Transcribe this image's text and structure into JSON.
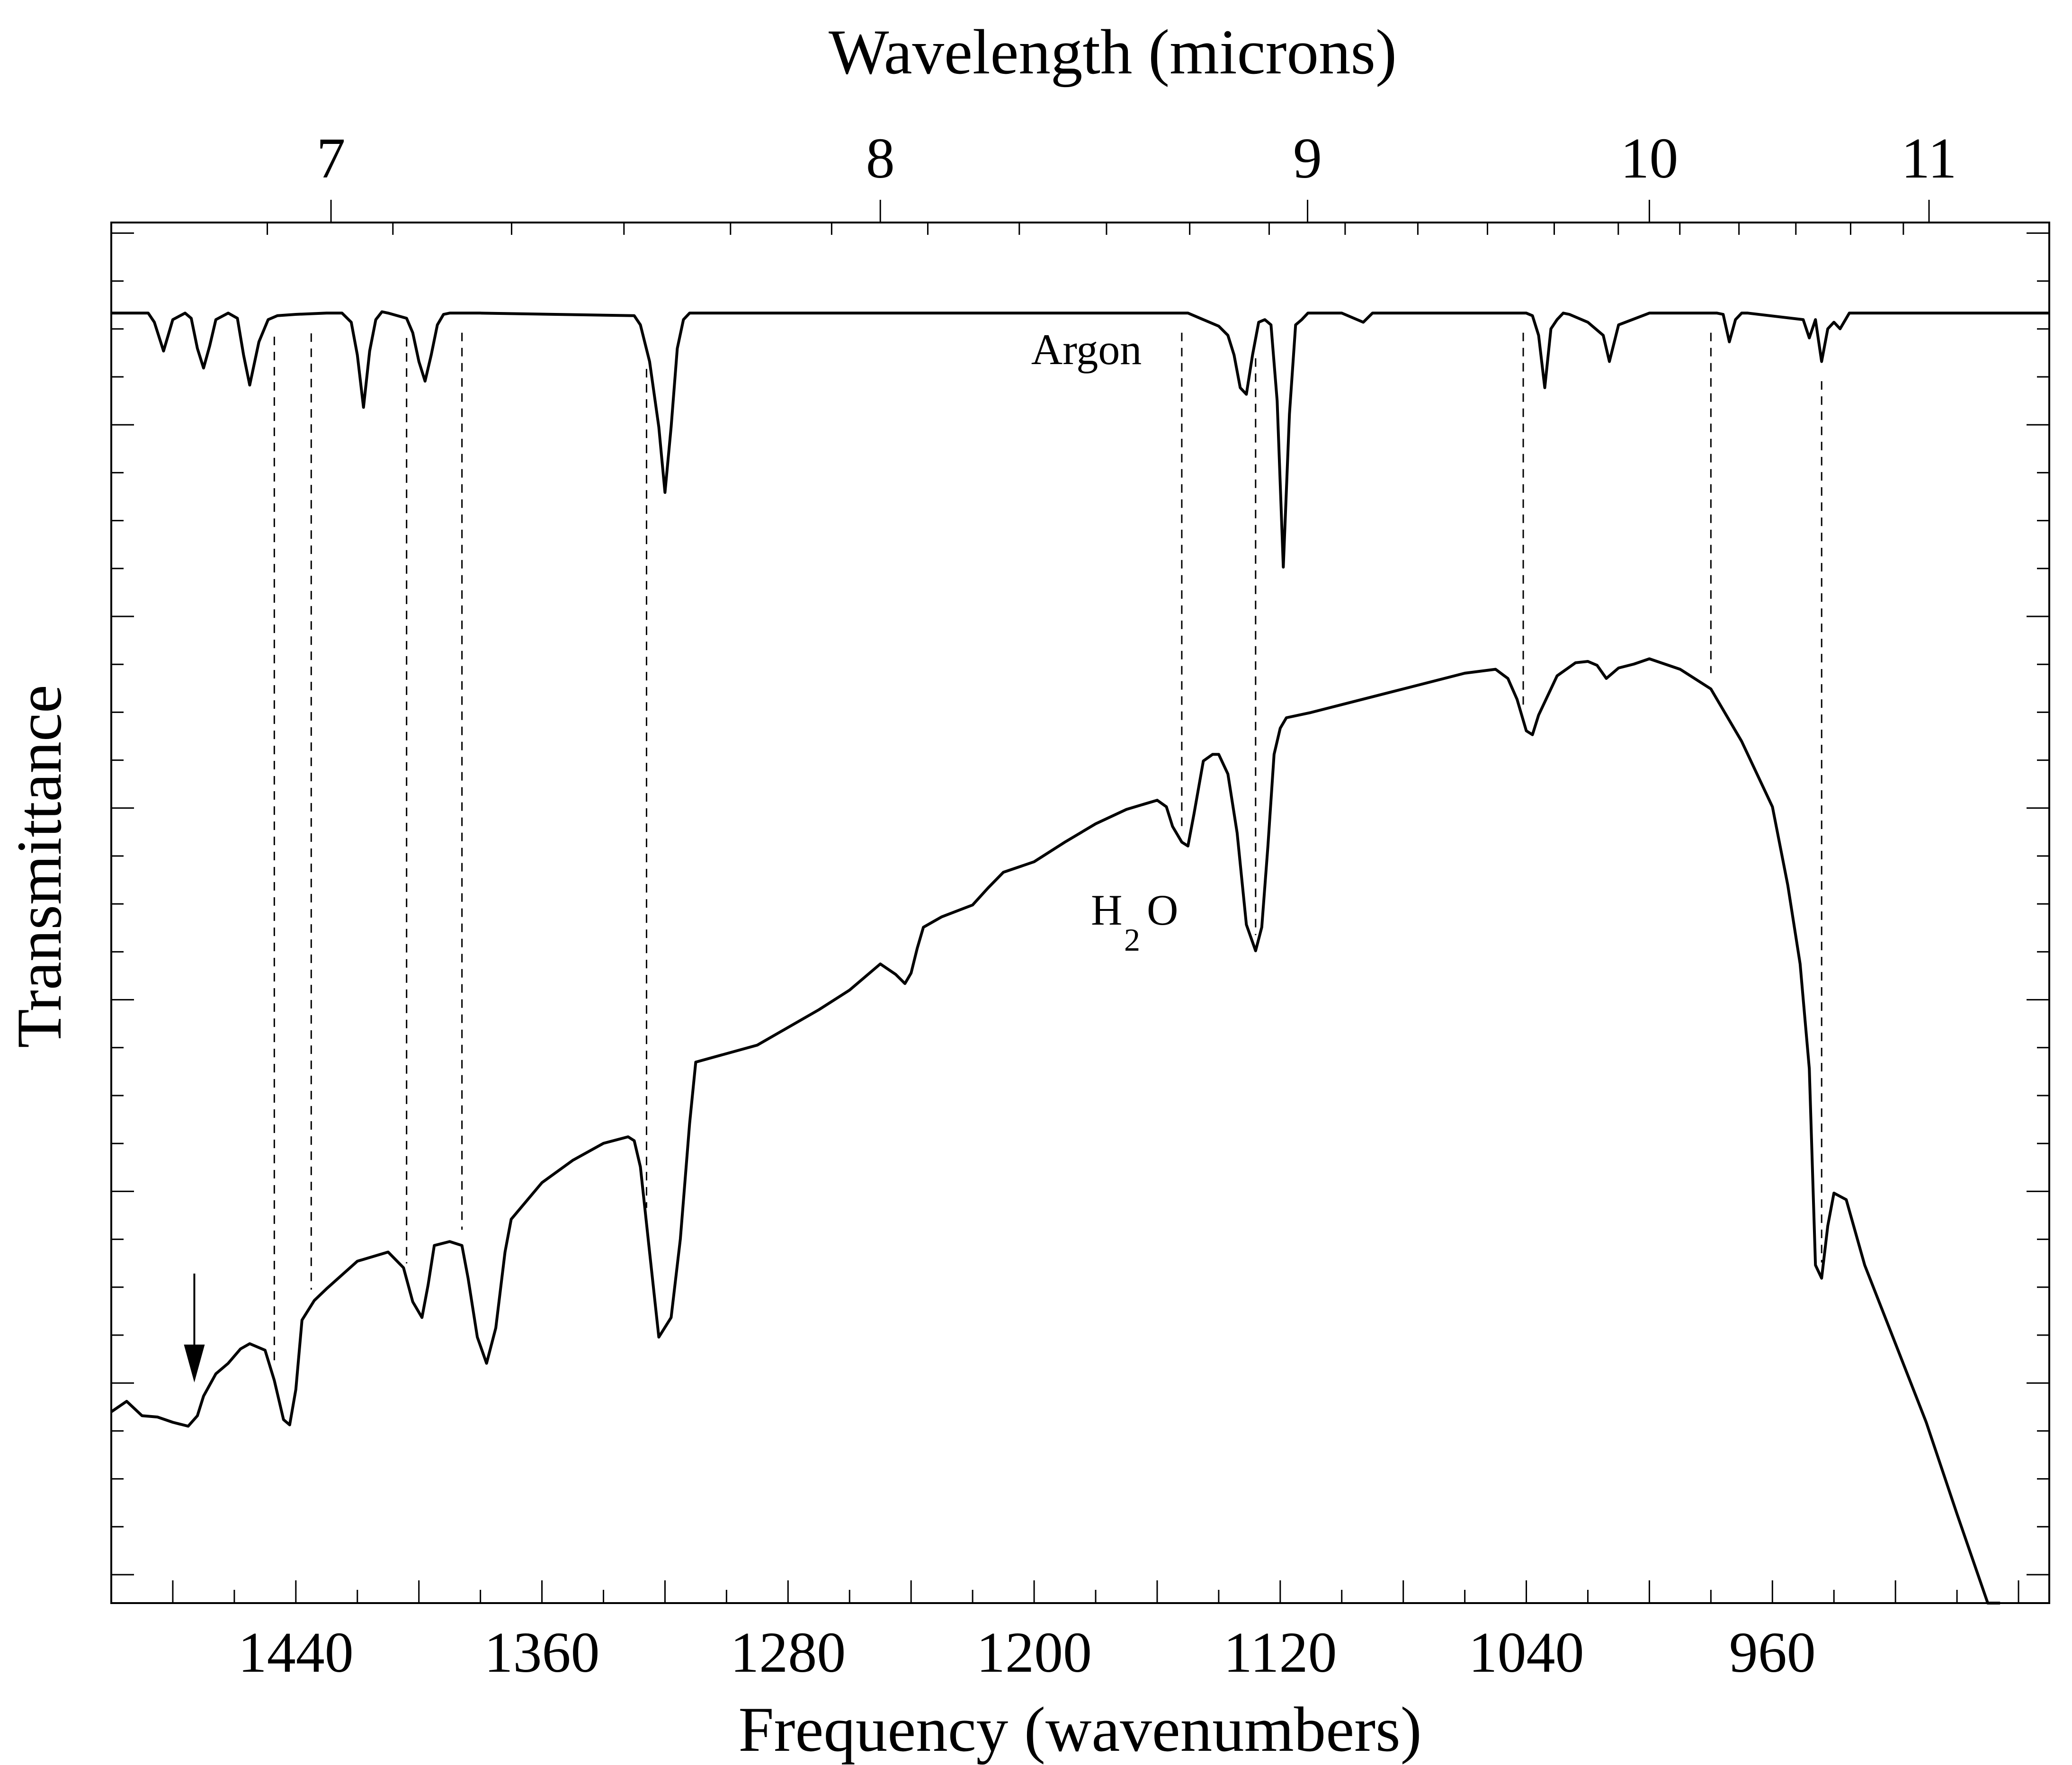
{
  "chart_data": {
    "type": "line",
    "xlabel": "Frequency (wavenumbers)",
    "ylabel": "Transmittance",
    "top_xlabel": "Wavelength (microns)",
    "xlim": [
      1500,
      870
    ],
    "x_reversed": true,
    "ylim": [
      0,
      1
    ],
    "x_ticks": [
      1440,
      1360,
      1280,
      1200,
      1120,
      1040,
      960
    ],
    "x_tick_labels": [
      "1440",
      "1360",
      "1280",
      "1200",
      "1120",
      "1040",
      "960"
    ],
    "top_ticks_microns": [
      7,
      8,
      9,
      10,
      11
    ],
    "top_tick_labels": [
      "7",
      "8",
      "9",
      "10",
      "11"
    ],
    "y_tick_labels_shown": false,
    "grid": false,
    "legend": "none",
    "series": [
      {
        "name": "Argon",
        "label_position": [
          1183,
          0.928
        ],
        "x": [
          1500,
          1488,
          1486,
          1483,
          1480,
          1476,
          1474,
          1472,
          1470,
          1468,
          1466,
          1462,
          1459,
          1457,
          1455,
          1452,
          1449,
          1446,
          1440,
          1430,
          1425,
          1422,
          1420,
          1418,
          1416,
          1414,
          1412,
          1410,
          1404,
          1402,
          1400,
          1398,
          1396,
          1394,
          1392,
          1390,
          1380,
          1330,
          1328,
          1325,
          1322,
          1320,
          1318,
          1316,
          1314,
          1312,
          1310,
          1308,
          1305,
          1302,
          1298,
          1280,
          1256,
          1250,
          1230,
          1225,
          1210,
          1150,
          1140,
          1137,
          1135,
          1133,
          1131,
          1129,
          1127,
          1125,
          1123,
          1121,
          1119,
          1117,
          1115,
          1113,
          1111,
          1100,
          1093,
          1090,
          1040,
          1038,
          1036,
          1034,
          1032,
          1030,
          1028,
          1026,
          1020,
          1015,
          1013,
          1010,
          1000,
          978,
          976,
          974,
          972,
          970,
          968,
          950,
          948,
          946,
          944,
          942,
          940,
          938,
          935,
          930,
          870
        ],
        "y": [
          0.967,
          0.967,
          0.96,
          0.938,
          0.962,
          0.967,
          0.963,
          0.94,
          0.925,
          0.942,
          0.962,
          0.967,
          0.963,
          0.935,
          0.912,
          0.945,
          0.962,
          0.965,
          0.966,
          0.967,
          0.967,
          0.96,
          0.935,
          0.895,
          0.938,
          0.962,
          0.968,
          0.967,
          0.963,
          0.952,
          0.93,
          0.915,
          0.935,
          0.958,
          0.966,
          0.967,
          0.967,
          0.965,
          0.958,
          0.93,
          0.88,
          0.83,
          0.88,
          0.94,
          0.962,
          0.967,
          0.967,
          0.967,
          0.967,
          0.967,
          0.967,
          0.967,
          0.967,
          0.967,
          0.967,
          0.967,
          0.967,
          0.967,
          0.957,
          0.95,
          0.935,
          0.91,
          0.905,
          0.935,
          0.96,
          0.962,
          0.958,
          0.9,
          0.773,
          0.89,
          0.958,
          0.962,
          0.967,
          0.967,
          0.96,
          0.967,
          0.967,
          0.965,
          0.95,
          0.91,
          0.955,
          0.962,
          0.967,
          0.966,
          0.96,
          0.95,
          0.93,
          0.958,
          0.967,
          0.967,
          0.966,
          0.945,
          0.962,
          0.967,
          0.967,
          0.962,
          0.948,
          0.962,
          0.93,
          0.955,
          0.96,
          0.955,
          0.967,
          0.967,
          0.967
        ]
      },
      {
        "name": "H2O",
        "label_parts": [
          "H",
          "2",
          "O"
        ],
        "label_position": [
          1180,
          0.5
        ],
        "x": [
          1500,
          1495,
          1490,
          1485,
          1480,
          1475,
          1472,
          1470,
          1466,
          1462,
          1458,
          1455,
          1450,
          1447,
          1444,
          1442,
          1440,
          1438,
          1434,
          1430,
          1420,
          1410,
          1405,
          1402,
          1399,
          1397,
          1395,
          1390,
          1386,
          1384,
          1381,
          1378,
          1375,
          1372,
          1370,
          1360,
          1350,
          1340,
          1332,
          1330,
          1328,
          1325,
          1322,
          1318,
          1315,
          1312,
          1310,
          1290,
          1270,
          1260,
          1250,
          1245,
          1242,
          1240,
          1238,
          1236,
          1230,
          1220,
          1215,
          1210,
          1200,
          1190,
          1180,
          1170,
          1160,
          1157,
          1155,
          1152,
          1150,
          1148,
          1145,
          1142,
          1140,
          1137,
          1134,
          1131,
          1128,
          1126,
          1124,
          1122,
          1120,
          1118,
          1110,
          1100,
          1080,
          1060,
          1050,
          1046,
          1043,
          1040,
          1038,
          1036,
          1030,
          1024,
          1020,
          1017,
          1014,
          1010,
          1005,
          1000,
          990,
          980,
          970,
          960,
          955,
          951,
          948,
          946,
          944,
          942,
          940,
          936,
          930,
          920,
          910,
          900,
          890,
          886
        ],
        "y": [
          0.128,
          0.136,
          0.125,
          0.124,
          0.12,
          0.117,
          0.125,
          0.14,
          0.157,
          0.165,
          0.176,
          0.18,
          0.175,
          0.152,
          0.122,
          0.118,
          0.145,
          0.198,
          0.213,
          0.222,
          0.243,
          0.25,
          0.238,
          0.212,
          0.2,
          0.225,
          0.255,
          0.258,
          0.255,
          0.23,
          0.185,
          0.165,
          0.192,
          0.25,
          0.275,
          0.303,
          0.32,
          0.333,
          0.338,
          0.335,
          0.315,
          0.25,
          0.185,
          0.2,
          0.26,
          0.348,
          0.395,
          0.408,
          0.435,
          0.45,
          0.47,
          0.462,
          0.455,
          0.463,
          0.482,
          0.498,
          0.506,
          0.515,
          0.528,
          0.54,
          0.548,
          0.563,
          0.577,
          0.588,
          0.595,
          0.59,
          0.575,
          0.563,
          0.56,
          0.585,
          0.625,
          0.63,
          0.63,
          0.615,
          0.57,
          0.5,
          0.48,
          0.498,
          0.56,
          0.63,
          0.65,
          0.658,
          0.662,
          0.668,
          0.68,
          0.692,
          0.695,
          0.688,
          0.672,
          0.648,
          0.645,
          0.66,
          0.69,
          0.7,
          0.701,
          0.698,
          0.688,
          0.696,
          0.699,
          0.703,
          0.695,
          0.68,
          0.64,
          0.59,
          0.53,
          0.47,
          0.39,
          0.24,
          0.23,
          0.27,
          0.295,
          0.29,
          0.24,
          0.18,
          0.12,
          0.05,
          -0.02,
          -0.045
        ],
        "annotation_arrow_x": 1473
      }
    ],
    "dashed_line_x": [
      1447,
      1435,
      1404,
      1386,
      1326,
      1152,
      1128,
      1041,
      980,
      944
    ]
  }
}
